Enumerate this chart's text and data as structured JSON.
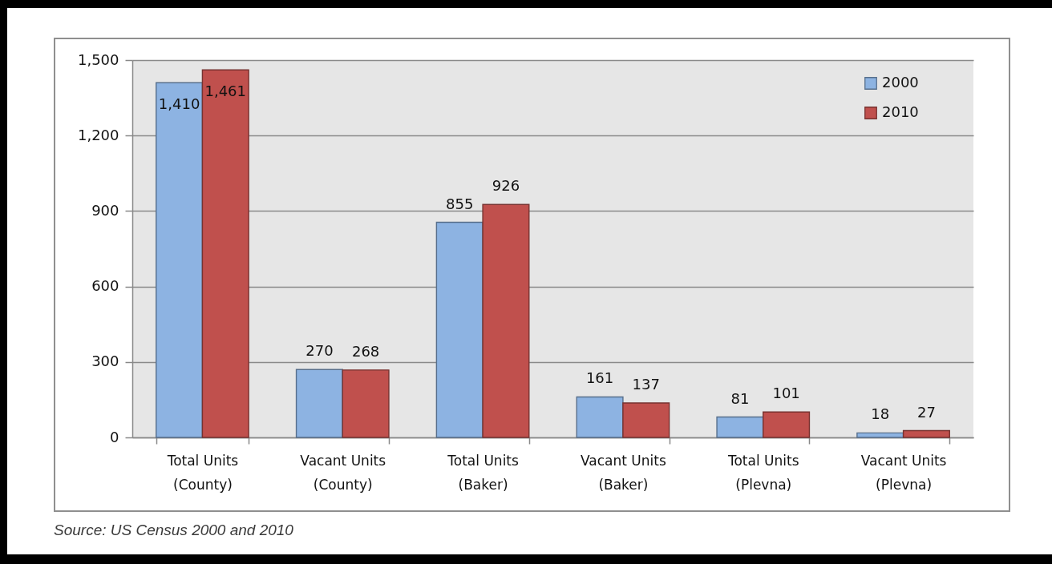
{
  "chart_data": {
    "type": "bar",
    "categories": [
      "Total Units (County)",
      "Vacant Units (County)",
      "Total Units (Baker)",
      "Vacant Units (Baker)",
      "Total Units (Plevna)",
      "Vacant Units (Plevna)"
    ],
    "series": [
      {
        "name": "2000",
        "color": "#8db3e2",
        "values": [
          1410,
          270,
          855,
          161,
          81,
          18
        ],
        "value_labels": [
          "1,410",
          "270",
          "855",
          "161",
          "81",
          "18"
        ]
      },
      {
        "name": "2010",
        "color": "#c0504d",
        "values": [
          1461,
          268,
          926,
          137,
          101,
          27
        ],
        "value_labels": [
          "1,461",
          "268",
          "926",
          "137",
          "101",
          "27"
        ]
      }
    ],
    "ylim": [
      0,
      1500
    ],
    "yticks": [
      0,
      300,
      600,
      900,
      {
        "value": 1200,
        "label": "1,200"
      },
      {
        "value": 1500,
        "label": "1,500"
      }
    ],
    "grid": "y",
    "legend": "top right",
    "annotations": [
      "Source: US Census 2000 and 2010"
    ]
  }
}
